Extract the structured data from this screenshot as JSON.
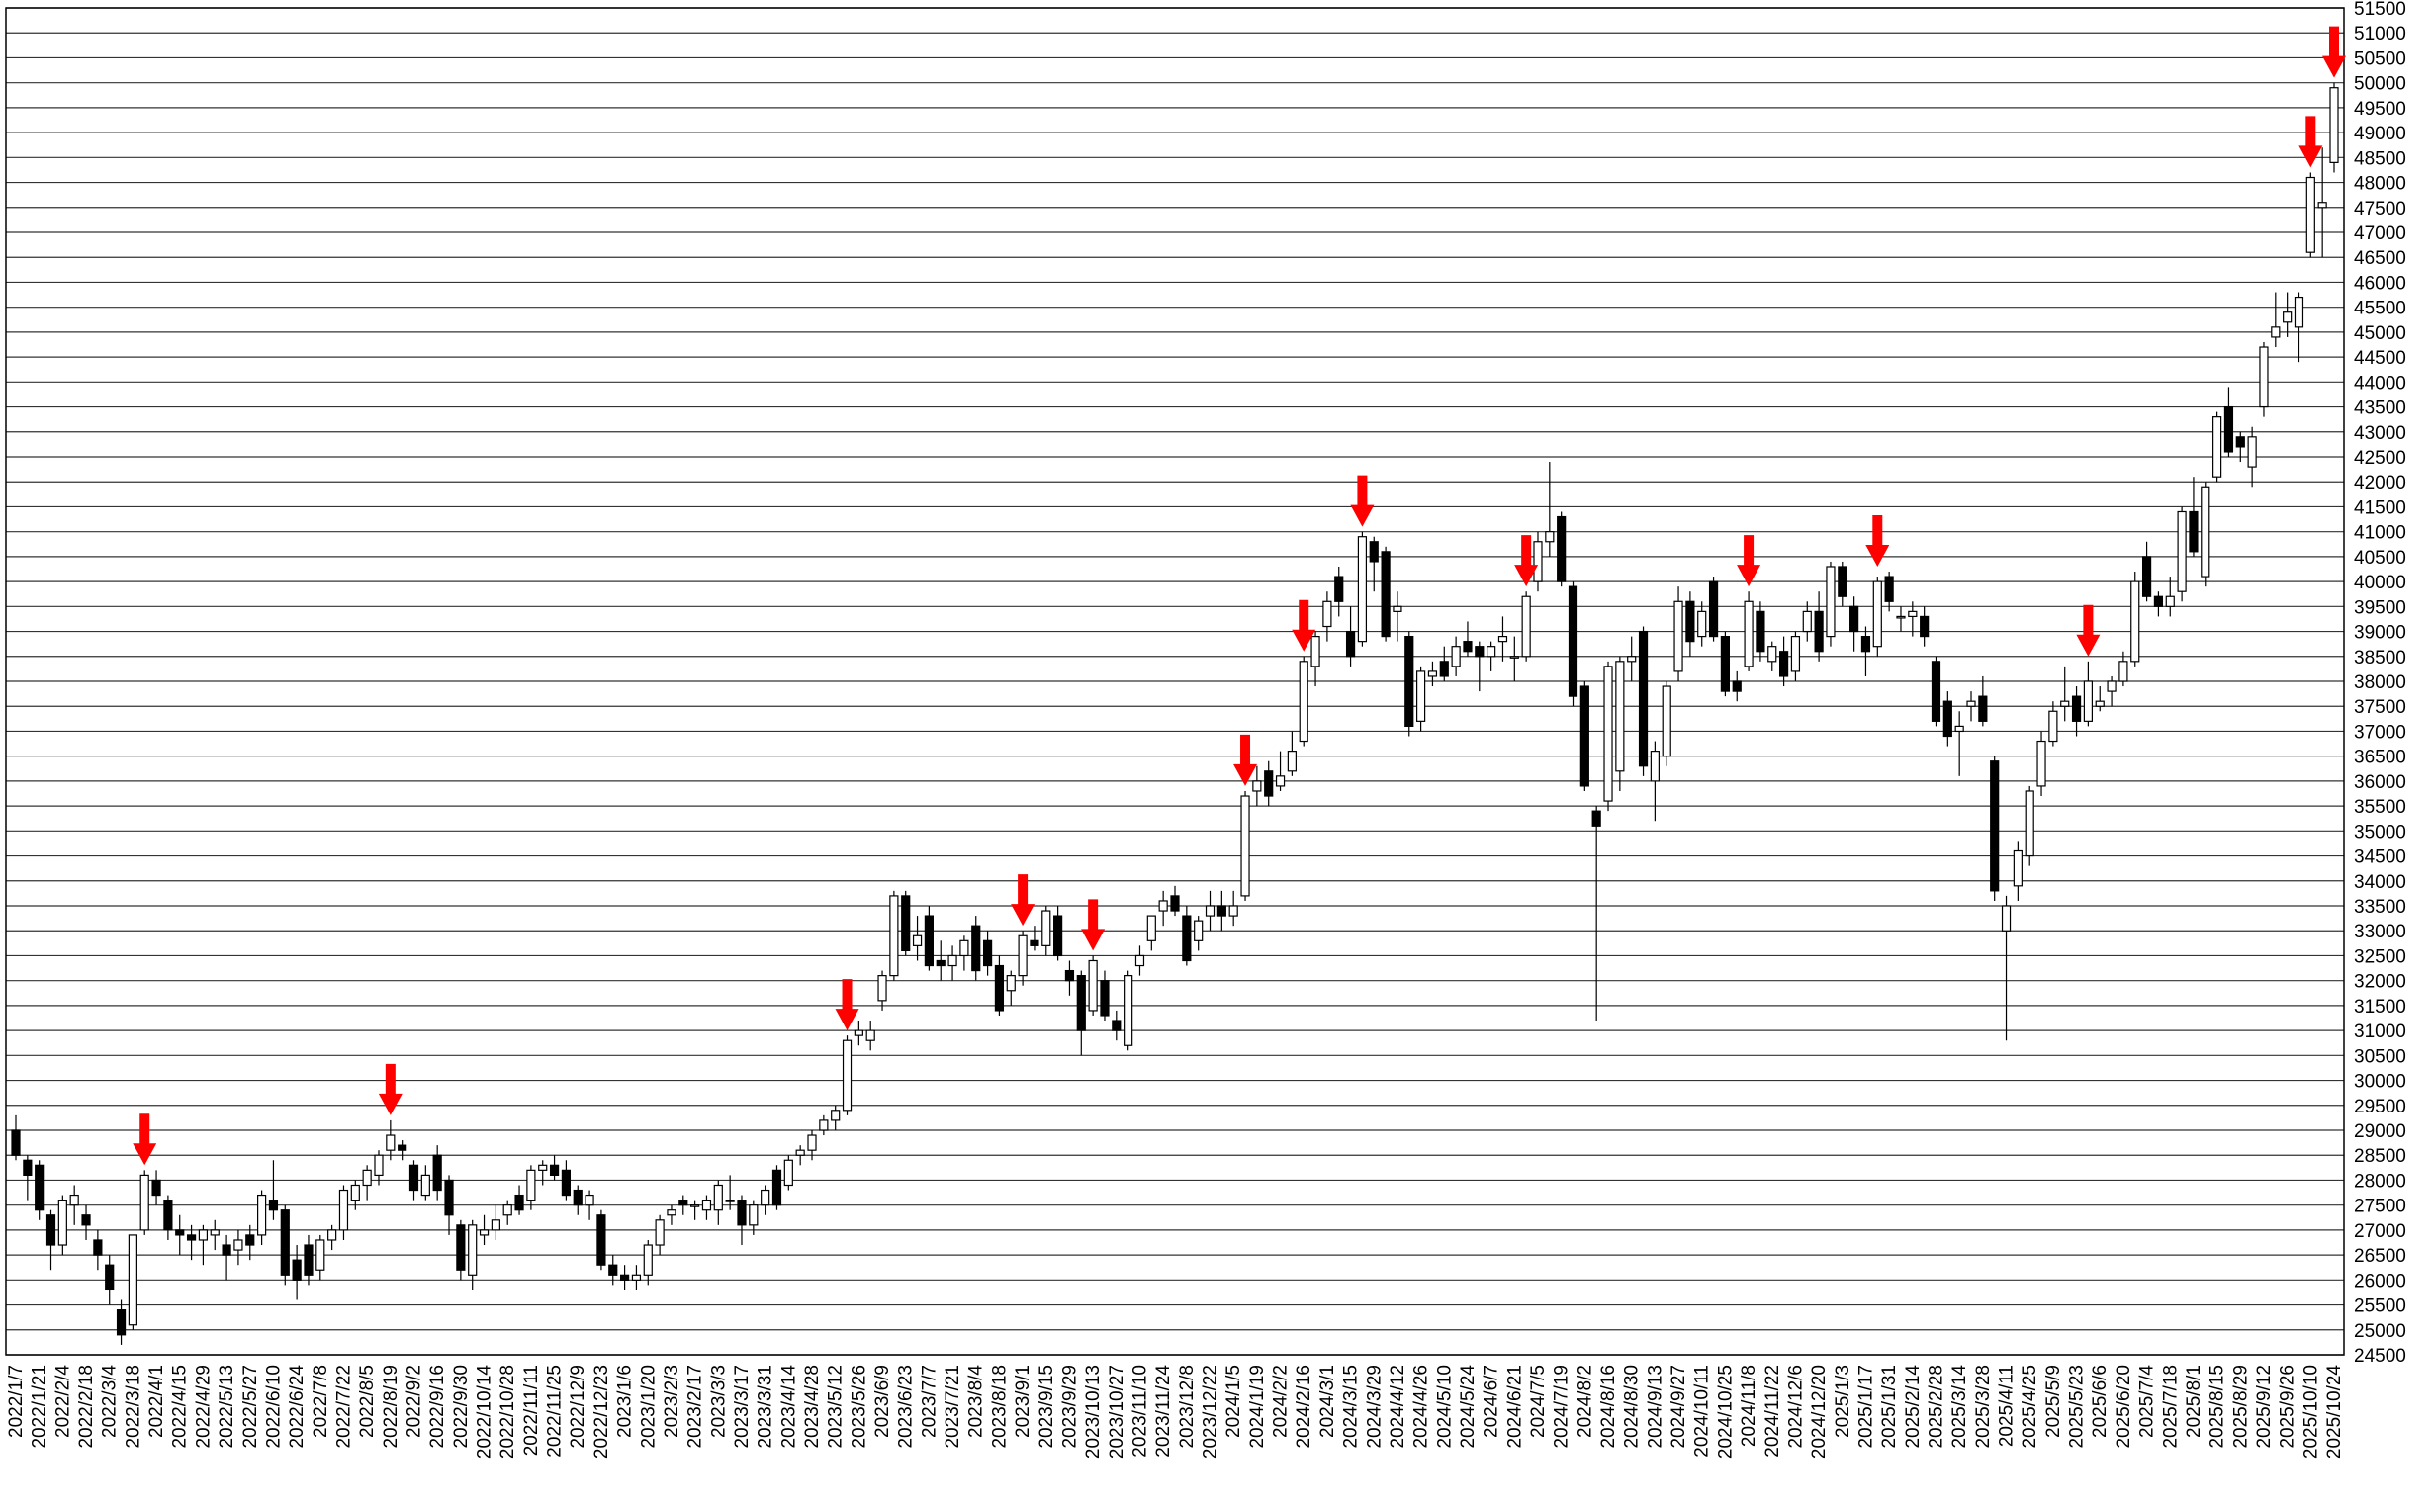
{
  "chart_data": {
    "type": "candlestick",
    "categories": [
      "2022/1/7",
      null,
      "2022/1/21",
      null,
      "2022/2/4",
      null,
      "2022/2/18",
      null,
      "2022/3/4",
      null,
      "2022/3/18",
      null,
      "2022/4/1",
      null,
      "2022/4/15",
      null,
      "2022/4/29",
      null,
      "2022/5/13",
      null,
      "2022/5/27",
      null,
      "2022/6/10",
      null,
      "2022/6/24",
      null,
      "2022/7/8",
      null,
      "2022/7/22",
      null,
      "2022/8/5",
      null,
      "2022/8/19",
      null,
      "2022/9/2",
      null,
      "2022/9/16",
      null,
      "2022/9/30",
      null,
      "2022/10/14",
      null,
      "2022/10/28",
      null,
      "2022/11/11",
      null,
      "2022/11/25",
      null,
      "2022/12/9",
      null,
      "2022/12/23",
      null,
      "2023/1/6",
      null,
      "2023/1/20",
      null,
      "2023/2/3",
      null,
      "2023/2/17",
      null,
      "2023/3/3",
      null,
      "2023/3/17",
      null,
      "2023/3/31",
      null,
      "2023/4/14",
      null,
      "2023/4/28",
      null,
      "2023/5/12",
      null,
      "2023/5/26",
      null,
      "2023/6/9",
      null,
      "2023/6/23",
      null,
      "2023/7/7",
      null,
      "2023/7/21",
      null,
      "2023/8/4",
      null,
      "2023/8/18",
      null,
      "2023/9/1",
      null,
      "2023/9/15",
      null,
      "2023/9/29",
      null,
      "2023/10/13",
      null,
      "2023/10/27",
      null,
      "2023/11/10",
      null,
      "2023/11/24",
      null,
      "2023/12/8",
      null,
      "2023/12/22",
      null,
      "2024/1/5",
      null,
      "2024/1/19",
      null,
      "2024/2/2",
      null,
      "2024/2/16",
      null,
      "2024/3/1",
      null,
      "2024/3/15",
      null,
      "2024/3/29",
      null,
      "2024/4/12",
      null,
      "2024/4/26",
      null,
      "2024/5/10",
      null,
      "2024/5/24",
      null,
      "2024/6/7",
      null,
      "2024/6/21",
      null,
      "2024/7/5",
      null,
      "2024/7/19",
      null,
      "2024/8/2",
      null,
      "2024/8/16",
      null,
      "2024/8/30",
      null,
      "2024/9/13",
      null,
      "2024/9/27",
      null,
      "2024/10/11",
      null,
      "2024/10/25",
      null,
      "2024/11/8",
      null,
      "2024/11/22",
      null,
      "2024/12/6",
      null,
      "2024/12/20",
      null,
      "2025/1/3",
      null,
      "2025/1/17",
      null,
      "2025/1/31",
      null,
      "2025/2/14",
      null,
      "2025/2/28",
      null,
      "2025/3/14",
      null,
      "2025/3/28",
      null,
      "2025/4/11",
      null,
      "2025/4/25",
      null,
      "2025/5/9",
      null,
      "2025/5/23",
      null,
      "2025/6/6",
      null,
      "2025/6/20",
      null,
      "2025/7/4",
      null,
      "2025/7/18",
      null,
      "2025/8/1",
      null,
      "2025/8/15",
      null,
      "2025/8/29",
      null,
      "2025/9/12",
      null,
      "2025/9/26",
      null,
      "2025/10/10",
      null,
      "2025/10/24"
    ],
    "open": [
      29000,
      28400,
      28300,
      27300,
      26700,
      27500,
      27300,
      26800,
      26300,
      25400,
      25100,
      27000,
      28000,
      27600,
      27000,
      26900,
      26800,
      26900,
      26700,
      26600,
      26900,
      26900,
      27600,
      27400,
      26400,
      26700,
      26200,
      26800,
      27000,
      27600,
      27900,
      28100,
      28600,
      28700,
      28300,
      27700,
      28500,
      28000,
      27100,
      26100,
      26900,
      27000,
      27300,
      27700,
      27600,
      28200,
      28300,
      28200,
      27800,
      27500,
      27300,
      26300,
      26100,
      26000,
      26100,
      26700,
      27300,
      27600,
      27500,
      27400,
      27400,
      27600,
      27600,
      27100,
      27500,
      28200,
      27900,
      28500,
      28600,
      29000,
      29200,
      29400,
      30900,
      30800,
      31600,
      32100,
      33700,
      32700,
      33300,
      32400,
      32300,
      32500,
      33100,
      32800,
      32300,
      31800,
      32100,
      32800,
      32700,
      33300,
      32200,
      32100,
      31400,
      32000,
      31200,
      30700,
      32300,
      32800,
      33400,
      33700,
      33300,
      32800,
      33300,
      33500,
      33300,
      33700,
      35800,
      36200,
      35900,
      36200,
      36800,
      38300,
      39100,
      40100,
      39000,
      38800,
      40800,
      40600,
      39400,
      38900,
      37200,
      38100,
      38400,
      38300,
      38800,
      38700,
      38500,
      38800,
      38500,
      38500,
      40000,
      40800,
      41300,
      39900,
      37900,
      35400,
      35600,
      36200,
      38400,
      39000,
      36000,
      36500,
      38200,
      39600,
      38900,
      40000,
      38900,
      38000,
      38300,
      39400,
      38400,
      38600,
      38200,
      39000,
      39400,
      38900,
      40300,
      39500,
      38900,
      38700,
      40100,
      39300,
      39300,
      39300,
      38400,
      37600,
      37000,
      37500,
      37700,
      36400,
      33000,
      33900,
      34500,
      35900,
      36800,
      37500,
      37700,
      37200,
      37500,
      37800,
      38000,
      38400,
      40500,
      39700,
      39500,
      39800,
      41400,
      40100,
      42100,
      43500,
      42900,
      42300,
      43500,
      44900,
      45200,
      45100,
      46600,
      47500,
      48400
    ],
    "high": [
      29300,
      28500,
      28400,
      27400,
      27700,
      27900,
      27500,
      27000,
      26500,
      25600,
      26900,
      28200,
      28200,
      27700,
      27300,
      27100,
      27100,
      27200,
      26900,
      27000,
      27100,
      27800,
      28400,
      27500,
      26700,
      26900,
      26900,
      27100,
      27900,
      28000,
      28300,
      28600,
      29200,
      28800,
      28400,
      28300,
      28700,
      28100,
      27200,
      27200,
      27300,
      27500,
      27600,
      27900,
      28300,
      28400,
      28500,
      28400,
      27900,
      27800,
      27400,
      26500,
      26300,
      26300,
      26800,
      27300,
      27500,
      27700,
      27600,
      27700,
      28000,
      28100,
      27700,
      27600,
      27900,
      28300,
      28500,
      28700,
      29000,
      29300,
      29500,
      30900,
      31200,
      31200,
      32200,
      33800,
      33800,
      33300,
      33500,
      32800,
      32700,
      32900,
      33300,
      33000,
      32500,
      32200,
      33000,
      33100,
      33500,
      33500,
      32400,
      32200,
      32500,
      32200,
      31400,
      32200,
      32700,
      33300,
      33800,
      33900,
      33500,
      33300,
      33800,
      33800,
      33800,
      35800,
      36300,
      36400,
      36600,
      37000,
      38500,
      39000,
      39800,
      40300,
      39500,
      41000,
      40900,
      40700,
      39800,
      39000,
      38300,
      38400,
      38700,
      38900,
      39200,
      38800,
      38800,
      39300,
      38900,
      39800,
      41000,
      42400,
      41400,
      40000,
      38000,
      35500,
      38400,
      38500,
      38900,
      39100,
      36800,
      38000,
      39900,
      39800,
      39600,
      40100,
      39000,
      38200,
      39800,
      39600,
      38800,
      38900,
      39000,
      39600,
      39800,
      40400,
      40400,
      39700,
      39100,
      40100,
      40200,
      39500,
      39600,
      39500,
      38500,
      37800,
      37400,
      37800,
      38100,
      36500,
      33700,
      34800,
      35900,
      37000,
      37600,
      38300,
      37900,
      38400,
      37900,
      38100,
      38600,
      40200,
      40800,
      39800,
      40100,
      41500,
      42100,
      42000,
      43400,
      43900,
      43000,
      43100,
      44800,
      45800,
      45800,
      45800,
      48200,
      48700,
      50000
    ],
    "low": [
      28400,
      27600,
      27200,
      26200,
      26500,
      27100,
      26800,
      26200,
      25500,
      24700,
      25000,
      26900,
      27500,
      26800,
      26500,
      26400,
      26300,
      26600,
      26000,
      26300,
      26400,
      26700,
      27200,
      25900,
      25600,
      25900,
      26000,
      26600,
      26800,
      27400,
      27600,
      27900,
      28400,
      28400,
      27600,
      27600,
      27600,
      26900,
      26000,
      25800,
      26700,
      26800,
      27100,
      27300,
      27400,
      27900,
      28000,
      27600,
      27300,
      27200,
      26200,
      25900,
      25800,
      25800,
      25900,
      26500,
      27100,
      27300,
      27200,
      27200,
      27100,
      27400,
      26700,
      26900,
      27300,
      27400,
      27800,
      28300,
      28400,
      28900,
      29000,
      29300,
      30700,
      30600,
      31400,
      32000,
      32500,
      32400,
      32200,
      32000,
      32000,
      32200,
      32000,
      32100,
      31300,
      31500,
      31900,
      32600,
      32500,
      32400,
      31700,
      30500,
      31300,
      31200,
      30800,
      30600,
      32100,
      32600,
      33100,
      33300,
      32300,
      32600,
      33000,
      33000,
      33100,
      33600,
      35500,
      35500,
      35800,
      36100,
      36700,
      37900,
      38800,
      39300,
      38300,
      38700,
      39800,
      38800,
      38800,
      36900,
      37000,
      37900,
      38000,
      38100,
      38500,
      37800,
      38200,
      38400,
      38000,
      38400,
      39800,
      40500,
      39900,
      37500,
      35800,
      31200,
      35400,
      35800,
      38000,
      36100,
      35200,
      36300,
      38000,
      38500,
      38700,
      38800,
      37700,
      37600,
      38200,
      38400,
      38200,
      37900,
      38000,
      38800,
      38400,
      38700,
      39500,
      38600,
      38100,
      38500,
      39400,
      39000,
      38900,
      38700,
      37100,
      36700,
      36100,
      37200,
      37100,
      33600,
      30800,
      33600,
      34300,
      35700,
      36700,
      37200,
      36900,
      37100,
      37400,
      37500,
      37900,
      38300,
      39600,
      39300,
      39300,
      39600,
      40500,
      39900,
      42000,
      42500,
      42400,
      41900,
      43300,
      44700,
      44900,
      44400,
      46500,
      46500,
      48200
    ],
    "close": [
      28500,
      28100,
      27400,
      26700,
      27600,
      27700,
      27100,
      26500,
      25800,
      24900,
      26900,
      28100,
      27700,
      27000,
      26900,
      26800,
      27000,
      27000,
      26500,
      26800,
      26700,
      27700,
      27400,
      26100,
      26000,
      26100,
      26800,
      27000,
      27800,
      27900,
      28200,
      28500,
      28900,
      28600,
      27800,
      28100,
      27800,
      27300,
      26200,
      27100,
      27000,
      27200,
      27500,
      27400,
      28200,
      28300,
      28100,
      27700,
      27500,
      27700,
      26300,
      26100,
      26000,
      26100,
      26700,
      27200,
      27400,
      27500,
      27500,
      27600,
      27900,
      27600,
      27100,
      27500,
      27800,
      27500,
      28400,
      28600,
      28900,
      29200,
      29400,
      30800,
      31000,
      31000,
      32100,
      33700,
      32600,
      32900,
      32300,
      32300,
      32500,
      32800,
      32200,
      32300,
      31400,
      32100,
      32900,
      32700,
      33400,
      32500,
      32000,
      31000,
      32400,
      31300,
      31000,
      32100,
      32500,
      33300,
      33600,
      33400,
      32400,
      33200,
      33500,
      33300,
      33500,
      35700,
      36000,
      35700,
      36100,
      36600,
      38400,
      38900,
      39600,
      39600,
      38500,
      40900,
      40400,
      38900,
      39500,
      37100,
      38200,
      38200,
      38100,
      38700,
      38600,
      38500,
      38700,
      38900,
      38500,
      39700,
      40800,
      41000,
      40000,
      37700,
      35900,
      35100,
      38300,
      38400,
      38500,
      36300,
      36600,
      37900,
      39600,
      38800,
      39400,
      38900,
      37800,
      37800,
      39600,
      38600,
      38700,
      38100,
      38900,
      39400,
      38600,
      40300,
      39700,
      39000,
      38600,
      40000,
      39600,
      39300,
      39400,
      38900,
      37200,
      36900,
      37100,
      37600,
      37200,
      33800,
      33500,
      34600,
      35800,
      36800,
      37400,
      37600,
      37200,
      38000,
      37600,
      38000,
      38400,
      40000,
      39700,
      39500,
      39700,
      41400,
      40600,
      41900,
      43300,
      42600,
      42700,
      42900,
      44700,
      45100,
      45400,
      45700,
      48100,
      47600,
      49900
    ],
    "signals": [
      null,
      null,
      null,
      null,
      null,
      null,
      null,
      null,
      null,
      null,
      null,
      28300,
      null,
      null,
      null,
      null,
      null,
      null,
      null,
      null,
      null,
      null,
      null,
      null,
      null,
      null,
      null,
      null,
      null,
      null,
      null,
      null,
      29300,
      null,
      null,
      null,
      null,
      null,
      null,
      null,
      null,
      null,
      null,
      null,
      null,
      null,
      null,
      null,
      null,
      null,
      null,
      null,
      null,
      null,
      null,
      null,
      null,
      null,
      null,
      null,
      null,
      null,
      null,
      null,
      null,
      null,
      null,
      null,
      null,
      null,
      null,
      31000,
      null,
      null,
      null,
      null,
      null,
      null,
      null,
      null,
      null,
      null,
      null,
      null,
      null,
      null,
      33100,
      null,
      null,
      null,
      null,
      null,
      32600,
      null,
      null,
      null,
      null,
      null,
      null,
      null,
      null,
      null,
      null,
      null,
      null,
      35900,
      null,
      null,
      null,
      null,
      38600,
      null,
      null,
      null,
      null,
      41100,
      null,
      null,
      null,
      null,
      null,
      null,
      null,
      null,
      null,
      null,
      null,
      null,
      null,
      39900,
      null,
      null,
      null,
      null,
      null,
      null,
      null,
      null,
      null,
      null,
      null,
      null,
      null,
      null,
      null,
      null,
      null,
      null,
      39900,
      null,
      null,
      null,
      null,
      null,
      null,
      null,
      null,
      null,
      null,
      40300,
      null,
      null,
      null,
      null,
      null,
      null,
      null,
      null,
      null,
      null,
      null,
      null,
      null,
      null,
      null,
      null,
      null,
      38500,
      null,
      null,
      null,
      null,
      null,
      null,
      null,
      null,
      null,
      null,
      null,
      null,
      null,
      null,
      null,
      null,
      null,
      null,
      48300,
      null,
      50100
    ],
    "up_color": "#ffffff",
    "down_color": "#000000",
    "signal_color": "#ff0000",
    "grid": true,
    "ylim": [
      24500,
      51500
    ],
    "yticks": [
      24500,
      25000,
      25500,
      26000,
      26500,
      27000,
      27500,
      28000,
      28500,
      29000,
      29500,
      30000,
      30500,
      31000,
      31500,
      32000,
      32500,
      33000,
      33500,
      34000,
      34500,
      35000,
      35500,
      36000,
      36500,
      37000,
      37500,
      38000,
      38500,
      39000,
      39500,
      40000,
      40500,
      41000,
      41500,
      42000,
      42500,
      43000,
      43500,
      44000,
      44500,
      45000,
      45500,
      46000,
      46500,
      47000,
      47500,
      48000,
      48500,
      49000,
      49500,
      50000,
      50500,
      51000,
      51500
    ]
  }
}
